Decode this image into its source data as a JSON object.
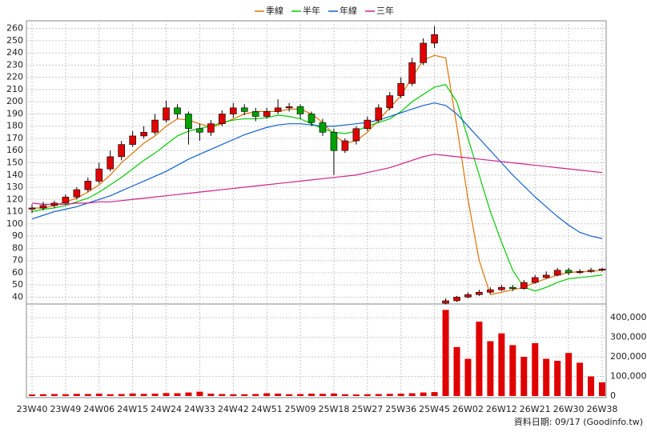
{
  "chart_data": {
    "type": "candlestick",
    "categories": [
      "23W40",
      null,
      null,
      "23W49",
      null,
      null,
      "24W06",
      null,
      null,
      "24W15",
      null,
      null,
      "24W24",
      null,
      null,
      "24W33",
      null,
      null,
      "24W42",
      null,
      null,
      "24W51",
      null,
      null,
      "25W09",
      null,
      null,
      "25W18",
      null,
      null,
      "25W27",
      null,
      null,
      "25W36",
      null,
      null,
      "25W45",
      null,
      null,
      "26W02",
      null,
      null,
      "26W12",
      null,
      null,
      "26W21",
      null,
      null,
      "26W30",
      null,
      null,
      "26W38"
    ],
    "open": [
      112,
      113,
      115,
      117,
      122,
      128,
      135,
      145,
      155,
      165,
      172,
      175,
      185,
      195,
      190,
      178,
      175,
      182,
      190,
      195,
      192,
      188,
      192,
      195,
      196,
      190,
      183,
      175,
      160,
      168,
      178,
      185,
      195,
      205,
      215,
      232,
      248,
      35,
      37,
      40,
      42,
      44,
      46,
      48,
      47,
      52,
      56,
      58,
      62,
      60,
      61,
      62
    ],
    "high": [
      116,
      118,
      119,
      124,
      130,
      138,
      150,
      160,
      168,
      176,
      180,
      190,
      201,
      198,
      192,
      182,
      185,
      193,
      199,
      198,
      195,
      195,
      202,
      199,
      198,
      192,
      186,
      178,
      170,
      180,
      188,
      198,
      208,
      220,
      236,
      252,
      262,
      39,
      41,
      44,
      46,
      48,
      50,
      50,
      54,
      58,
      61,
      64,
      64,
      63,
      64,
      64
    ],
    "low": [
      109,
      111,
      113,
      116,
      120,
      126,
      133,
      143,
      152,
      163,
      170,
      173,
      183,
      186,
      165,
      168,
      172,
      180,
      187,
      189,
      184,
      186,
      190,
      192,
      186,
      180,
      172,
      140,
      158,
      165,
      176,
      183,
      193,
      203,
      213,
      230,
      244,
      34,
      36,
      39,
      41,
      43,
      45,
      45,
      46,
      51,
      55,
      57,
      58,
      59,
      60,
      61
    ],
    "close": [
      113,
      115,
      117,
      122,
      128,
      135,
      145,
      155,
      165,
      172,
      175,
      185,
      195,
      190,
      178,
      175,
      182,
      190,
      195,
      192,
      188,
      192,
      195,
      196,
      190,
      183,
      175,
      160,
      168,
      178,
      185,
      195,
      205,
      215,
      232,
      248,
      255,
      37,
      40,
      42,
      44,
      46,
      48,
      47,
      52,
      56,
      58,
      62,
      60,
      61,
      62,
      63
    ],
    "up_color": "#e00000",
    "down_color": "#00a000",
    "series": [
      {
        "name": "季線",
        "color": "#e07000",
        "values": [
          113,
          113,
          115,
          118,
          121,
          126,
          132,
          140,
          150,
          158,
          166,
          172,
          180,
          186,
          185,
          182,
          179,
          182,
          186,
          190,
          192,
          192,
          192,
          194,
          194,
          190,
          183,
          173,
          166,
          168,
          175,
          185,
          195,
          205,
          220,
          234,
          238,
          236,
          180,
          120,
          70,
          42,
          44,
          46,
          48,
          52,
          55,
          58,
          60,
          61,
          61,
          62
        ]
      },
      {
        "name": "半年",
        "color": "#00cc00",
        "values": [
          110,
          112,
          113,
          115,
          118,
          121,
          126,
          132,
          138,
          145,
          152,
          158,
          165,
          172,
          176,
          178,
          180,
          183,
          185,
          186,
          186,
          187,
          189,
          188,
          186,
          182,
          178,
          175,
          174,
          176,
          180,
          183,
          186,
          192,
          200,
          206,
          212,
          214,
          200,
          170,
          140,
          110,
          85,
          62,
          48,
          45,
          48,
          52,
          55,
          56,
          57,
          58
        ]
      },
      {
        "name": "年線",
        "color": "#1060d0",
        "values": [
          104,
          107,
          110,
          112,
          114,
          117,
          120,
          123,
          127,
          131,
          135,
          139,
          143,
          148,
          153,
          157,
          161,
          165,
          169,
          173,
          176,
          179,
          181,
          182,
          182,
          181,
          180,
          180,
          181,
          182,
          183,
          185,
          188,
          191,
          194,
          197,
          199,
          197,
          190,
          180,
          170,
          160,
          150,
          140,
          131,
          122,
          114,
          106,
          99,
          93,
          90,
          88
        ]
      },
      {
        "name": "三年",
        "color": "#d0208a",
        "values": [
          117,
          116,
          116,
          116,
          117,
          117,
          118,
          118,
          119,
          120,
          121,
          122,
          123,
          124,
          125,
          126,
          127,
          128,
          129,
          130,
          131,
          132,
          133,
          134,
          135,
          136,
          137,
          138,
          139,
          140,
          142,
          144,
          146,
          149,
          152,
          155,
          157,
          156,
          155,
          154,
          153,
          152,
          151,
          150,
          149,
          148,
          147,
          146,
          145,
          144,
          143,
          142
        ]
      }
    ],
    "ylim": [
      35,
      265
    ],
    "yticks": [
      40,
      50,
      60,
      70,
      80,
      90,
      100,
      110,
      120,
      130,
      140,
      150,
      160,
      170,
      180,
      190,
      200,
      210,
      220,
      230,
      240,
      250,
      260
    ],
    "volume": {
      "color": "#e00000",
      "values": [
        8000,
        9000,
        10000,
        9000,
        11000,
        10000,
        12000,
        9000,
        10000,
        13000,
        11000,
        12000,
        15000,
        14000,
        18000,
        22000,
        12000,
        10000,
        9000,
        9000,
        10000,
        14000,
        12000,
        9000,
        10000,
        12000,
        11000,
        13000,
        9000,
        8000,
        9000,
        10000,
        11000,
        12000,
        14000,
        18000,
        20000,
        440000,
        250000,
        190000,
        380000,
        280000,
        320000,
        260000,
        200000,
        270000,
        190000,
        180000,
        220000,
        170000,
        100000,
        70000
      ],
      "ylim": [
        0,
        470000
      ],
      "yticks": [
        0,
        {
          "value": 100000,
          "label": "100,000"
        },
        {
          "value": 200000,
          "label": "200,000"
        },
        {
          "value": 300000,
          "label": "300,000"
        },
        {
          "value": 400000,
          "label": "400,000"
        }
      ]
    },
    "grid": true,
    "footer": "資料日期: 09/17  (Goodinfo.tw)"
  }
}
